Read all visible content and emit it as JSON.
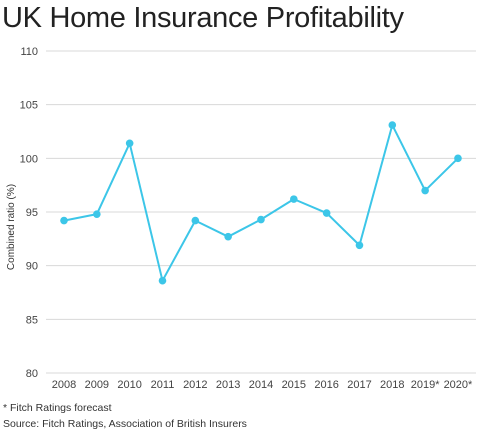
{
  "chart_data": {
    "type": "line",
    "title": "UK Home Insurance Profitability",
    "ylabel": "Combined ratio (%)",
    "xlabel": "",
    "ylim": [
      80,
      110
    ],
    "yticks": [
      80,
      85,
      90,
      95,
      100,
      105,
      110
    ],
    "grid": true,
    "categories": [
      "2008",
      "2009",
      "2010",
      "2011",
      "2012",
      "2013",
      "2014",
      "2015",
      "2016",
      "2017",
      "2018",
      "2019*",
      "2020*"
    ],
    "series": [
      {
        "values": [
          94.2,
          94.8,
          101.4,
          88.6,
          94.2,
          92.7,
          94.3,
          96.2,
          94.9,
          91.9,
          103.1,
          97.0,
          100.0
        ],
        "color": "#3cc6e8"
      }
    ],
    "gridColor": "#d8d8d8"
  },
  "footnotes": {
    "forecast": "* Fitch Ratings forecast",
    "source": "Source: Fitch Ratings, Association of British Insurers"
  }
}
